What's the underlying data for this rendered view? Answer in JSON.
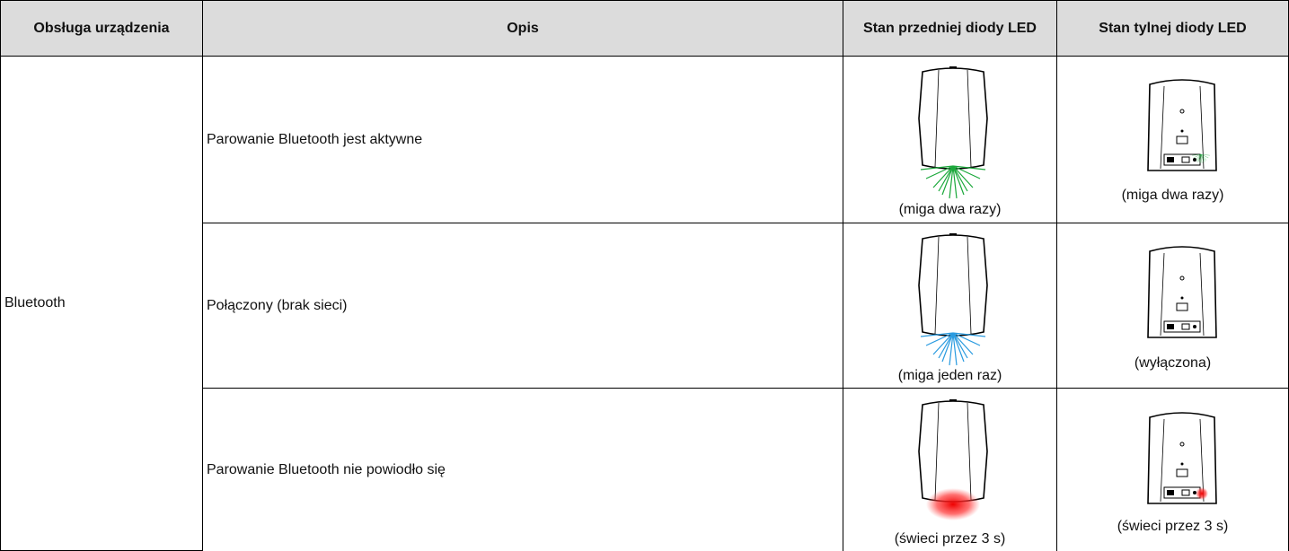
{
  "table": {
    "header": [
      "Obsługa urządzenia",
      "Opis",
      "Stan przedniej diody LED",
      "Stan tylnej diody LED"
    ],
    "group": "Bluetooth",
    "rows": [
      [
        "Parowanie Bluetooth jest aktywne",
        "(miga dwa razy)",
        "(miga dwa razy)"
      ],
      [
        "Połączony (brak sieci)",
        "(miga jeden raz)",
        "(wyłączona)"
      ],
      [
        "Parowanie Bluetooth nie powiodło się",
        "(świeci przez 3 s)",
        "(świeci przez 3 s)"
      ]
    ]
  }
}
